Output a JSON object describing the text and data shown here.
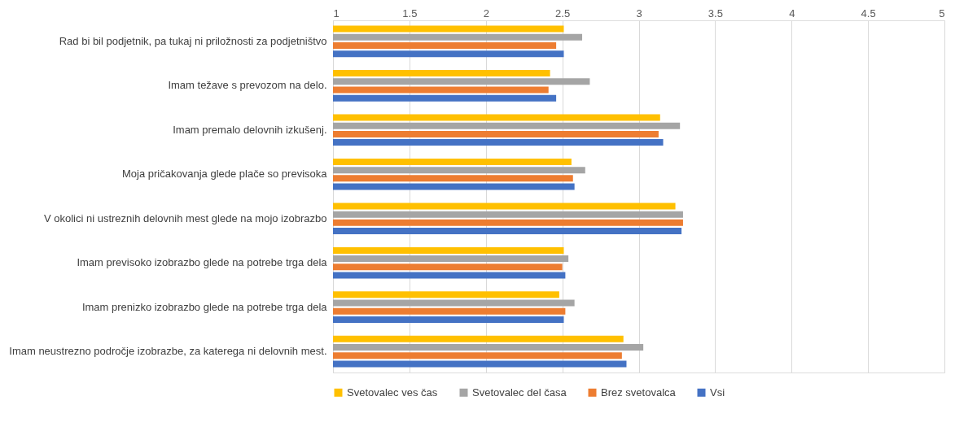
{
  "chart_data": {
    "type": "bar",
    "orientation": "horizontal",
    "categories": [
      "Rad bi bil podjetnik, pa tukaj ni priložnosti za podjetništvo",
      "Imam težave s prevozom na delo.",
      "Imam premalo delovnih izkušenj.",
      "Moja pričakovanja glede plače so previsoka",
      "V okolici ni ustreznih delovnih mest glede na mojo izobrazbo",
      "Imam previsoko izobrazbo glede na potrebe trga dela",
      "Imam  prenizko izobrazbo glede na potrebe trga dela",
      "Imam neustrezno področje izobrazbe, za katerega ni delovnih mest."
    ],
    "series": [
      {
        "name": "Svetovalec ves čas",
        "color": "#ffc000",
        "values": [
          2.51,
          2.42,
          3.14,
          2.56,
          3.24,
          2.51,
          2.48,
          2.9
        ]
      },
      {
        "name": "Svetovalec del časa",
        "color": "#a5a5a5",
        "values": [
          2.63,
          2.68,
          3.27,
          2.65,
          3.29,
          2.54,
          2.58,
          3.03
        ]
      },
      {
        "name": "Brez svetovalca",
        "color": "#ed7d31",
        "values": [
          2.46,
          2.41,
          3.13,
          2.57,
          3.29,
          2.5,
          2.52,
          2.89
        ]
      },
      {
        "name": "Vsi",
        "color": "#4472c4",
        "values": [
          2.51,
          2.46,
          3.16,
          2.58,
          3.28,
          2.52,
          2.51,
          2.92
        ]
      }
    ],
    "xlim": [
      1,
      5
    ],
    "xticks": [
      1,
      1.5,
      2,
      2.5,
      3,
      3.5,
      4,
      4.5,
      5
    ],
    "grid": "x",
    "legend": "bottom"
  }
}
